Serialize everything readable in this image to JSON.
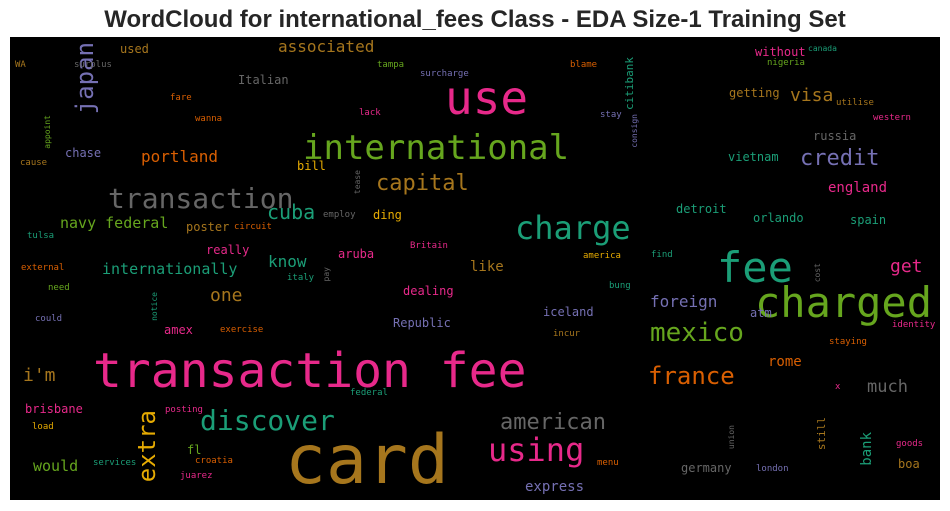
{
  "chart_data": {
    "type": "wordcloud",
    "title": "WordCloud for international_fees Class - EDA Size-1 Training Set",
    "background": "#000000",
    "palette": [
      "#e7298a",
      "#66a61e",
      "#1b9e77",
      "#a6761d",
      "#d95f02",
      "#7570b3",
      "#e6ab02",
      "#666666"
    ],
    "words": [
      {
        "text": "card",
        "weight": 100,
        "color": "#a6761d"
      },
      {
        "text": "transaction fee",
        "weight": 90,
        "color": "#e7298a"
      },
      {
        "text": "use",
        "weight": 78,
        "color": "#e7298a"
      },
      {
        "text": "charged",
        "weight": 68,
        "color": "#66a61e"
      },
      {
        "text": "fee",
        "weight": 66,
        "color": "#1b9e77"
      },
      {
        "text": "international",
        "weight": 60,
        "color": "#66a61e"
      },
      {
        "text": "transaction",
        "weight": 50,
        "color": "#666666"
      },
      {
        "text": "charge",
        "weight": 55,
        "color": "#1b9e77"
      },
      {
        "text": "discover",
        "weight": 48,
        "color": "#1b9e77"
      },
      {
        "text": "using",
        "weight": 50,
        "color": "#e7298a"
      },
      {
        "text": "extra",
        "weight": 44,
        "color": "#e6ab02"
      },
      {
        "text": "japan",
        "weight": 42,
        "color": "#7570b3"
      },
      {
        "text": "mexico",
        "weight": 42,
        "color": "#66a61e"
      },
      {
        "text": "american",
        "weight": 40,
        "color": "#666666"
      },
      {
        "text": "france",
        "weight": 40,
        "color": "#d95f02"
      },
      {
        "text": "capital",
        "weight": 38,
        "color": "#a6761d"
      },
      {
        "text": "credit",
        "weight": 36,
        "color": "#7570b3"
      },
      {
        "text": "cuba",
        "weight": 34,
        "color": "#1b9e77"
      },
      {
        "text": "visa",
        "weight": 30,
        "color": "#a6761d"
      },
      {
        "text": "get",
        "weight": 30,
        "color": "#e7298a"
      },
      {
        "text": "one",
        "weight": 28,
        "color": "#a6761d"
      },
      {
        "text": "i'm",
        "weight": 28,
        "color": "#a6761d"
      },
      {
        "text": "much",
        "weight": 27,
        "color": "#666666"
      },
      {
        "text": "know",
        "weight": 26,
        "color": "#1b9e77"
      },
      {
        "text": "foreign",
        "weight": 26,
        "color": "#7570b3"
      },
      {
        "text": "portland",
        "weight": 26,
        "color": "#d95f02"
      },
      {
        "text": "internationally",
        "weight": 24,
        "color": "#1b9e77"
      },
      {
        "text": "navy federal",
        "weight": 24,
        "color": "#66a61e"
      },
      {
        "text": "would",
        "weight": 24,
        "color": "#66a61e"
      },
      {
        "text": "associated",
        "weight": 24,
        "color": "#a6761d"
      },
      {
        "text": "bank",
        "weight": 22,
        "color": "#1b9e77"
      },
      {
        "text": "england",
        "weight": 22,
        "color": "#e7298a"
      },
      {
        "text": "express",
        "weight": 22,
        "color": "#7570b3"
      },
      {
        "text": "rome",
        "weight": 22,
        "color": "#d95f02"
      },
      {
        "text": "like",
        "weight": 22,
        "color": "#a6761d"
      },
      {
        "text": "chase",
        "weight": 20,
        "color": "#7570b3"
      },
      {
        "text": "russia",
        "weight": 20,
        "color": "#666666"
      },
      {
        "text": "iceland",
        "weight": 20,
        "color": "#7570b3"
      },
      {
        "text": "dealing",
        "weight": 20,
        "color": "#e7298a"
      },
      {
        "text": "aruba",
        "weight": 20,
        "color": "#e7298a"
      },
      {
        "text": "amex",
        "weight": 20,
        "color": "#e7298a"
      },
      {
        "text": "Republic",
        "weight": 20,
        "color": "#7570b3"
      },
      {
        "text": "really",
        "weight": 20,
        "color": "#e7298a"
      },
      {
        "text": "germany",
        "weight": 18,
        "color": "#666666"
      },
      {
        "text": "spain",
        "weight": 18,
        "color": "#1b9e77"
      },
      {
        "text": "orlando",
        "weight": 18,
        "color": "#1b9e77"
      },
      {
        "text": "detroit",
        "weight": 18,
        "color": "#1b9e77"
      },
      {
        "text": "vietnam",
        "weight": 18,
        "color": "#1b9e77"
      },
      {
        "text": "getting",
        "weight": 18,
        "color": "#a6761d"
      },
      {
        "text": "boa",
        "weight": 18,
        "color": "#a6761d"
      },
      {
        "text": "brisbane",
        "weight": 18,
        "color": "#e7298a"
      },
      {
        "text": "poster",
        "weight": 18,
        "color": "#a6761d"
      },
      {
        "text": "ding",
        "weight": 18,
        "color": "#e6ab02"
      },
      {
        "text": "used",
        "weight": 18,
        "color": "#a6761d"
      },
      {
        "text": "Italian",
        "weight": 18,
        "color": "#666666"
      },
      {
        "text": "atm",
        "weight": 18,
        "color": "#7570b3"
      },
      {
        "text": "bill",
        "weight": 18,
        "color": "#e6ab02"
      },
      {
        "text": "fl",
        "weight": 18,
        "color": "#66a61e"
      },
      {
        "text": "without",
        "weight": 16,
        "color": "#e7298a"
      },
      {
        "text": "still",
        "weight": 16,
        "color": "#a6761d"
      },
      {
        "text": "citibank",
        "weight": 16,
        "color": "#1b9e77"
      },
      {
        "text": "federal",
        "weight": 14,
        "color": "#1b9e77"
      },
      {
        "text": "croatia",
        "weight": 14,
        "color": "#d95f02"
      },
      {
        "text": "london",
        "weight": 14,
        "color": "#7570b3"
      },
      {
        "text": "fare",
        "weight": 14,
        "color": "#d95f02"
      },
      {
        "text": "blame",
        "weight": 14,
        "color": "#d95f02"
      },
      {
        "text": "tampa",
        "weight": 14,
        "color": "#66a61e"
      },
      {
        "text": "nigeria",
        "weight": 14,
        "color": "#66a61e"
      },
      {
        "text": "canada",
        "weight": 12,
        "color": "#1b9e77"
      },
      {
        "text": "utilise",
        "weight": 14,
        "color": "#a6761d"
      },
      {
        "text": "western",
        "weight": 14,
        "color": "#e7298a"
      },
      {
        "text": "stay",
        "weight": 14,
        "color": "#7570b3"
      },
      {
        "text": "consign",
        "weight": 12,
        "color": "#7570b3"
      },
      {
        "text": "lack",
        "weight": 14,
        "color": "#e7298a"
      },
      {
        "text": "surcharge",
        "weight": 14,
        "color": "#7570b3"
      },
      {
        "text": "surplus",
        "weight": 14,
        "color": "#666666"
      },
      {
        "text": "WA",
        "weight": 14,
        "color": "#a6761d"
      },
      {
        "text": "wanna",
        "weight": 14,
        "color": "#d95f02"
      },
      {
        "text": "appoint",
        "weight": 12,
        "color": "#66a61e"
      },
      {
        "text": "cause",
        "weight": 14,
        "color": "#a6761d"
      },
      {
        "text": "tease",
        "weight": 12,
        "color": "#666666"
      },
      {
        "text": "employ",
        "weight": 14,
        "color": "#666666"
      },
      {
        "text": "circuit",
        "weight": 14,
        "color": "#d95f02"
      },
      {
        "text": "tulsa",
        "weight": 14,
        "color": "#1b9e77"
      },
      {
        "text": "Britain",
        "weight": 14,
        "color": "#e7298a"
      },
      {
        "text": "america",
        "weight": 14,
        "color": "#e6ab02"
      },
      {
        "text": "find",
        "weight": 14,
        "color": "#1b9e77"
      },
      {
        "text": "external",
        "weight": 14,
        "color": "#d95f02"
      },
      {
        "text": "italy",
        "weight": 14,
        "color": "#1b9e77"
      },
      {
        "text": "pay",
        "weight": 12,
        "color": "#666666"
      },
      {
        "text": "cost",
        "weight": 12,
        "color": "#666666"
      },
      {
        "text": "need",
        "weight": 14,
        "color": "#66a61e"
      },
      {
        "text": "bung",
        "weight": 14,
        "color": "#1b9e77"
      },
      {
        "text": "could",
        "weight": 14,
        "color": "#7570b3"
      },
      {
        "text": "notice",
        "weight": 12,
        "color": "#1b9e77"
      },
      {
        "text": "exercise",
        "weight": 14,
        "color": "#d95f02"
      },
      {
        "text": "incur",
        "weight": 14,
        "color": "#a6761d"
      },
      {
        "text": "identity",
        "weight": 14,
        "color": "#e7298a"
      },
      {
        "text": "staying",
        "weight": 14,
        "color": "#d95f02"
      },
      {
        "text": "x",
        "weight": 14,
        "color": "#e7298a"
      },
      {
        "text": "posting",
        "weight": 14,
        "color": "#e7298a"
      },
      {
        "text": "load",
        "weight": 14,
        "color": "#e6ab02"
      },
      {
        "text": "services",
        "weight": 14,
        "color": "#1b9e77"
      },
      {
        "text": "juarez",
        "weight": 14,
        "color": "#e7298a"
      },
      {
        "text": "menu",
        "weight": 14,
        "color": "#d95f02"
      },
      {
        "text": "union",
        "weight": 12,
        "color": "#666666"
      },
      {
        "text": "goods",
        "weight": 14,
        "color": "#e7298a"
      }
    ]
  }
}
